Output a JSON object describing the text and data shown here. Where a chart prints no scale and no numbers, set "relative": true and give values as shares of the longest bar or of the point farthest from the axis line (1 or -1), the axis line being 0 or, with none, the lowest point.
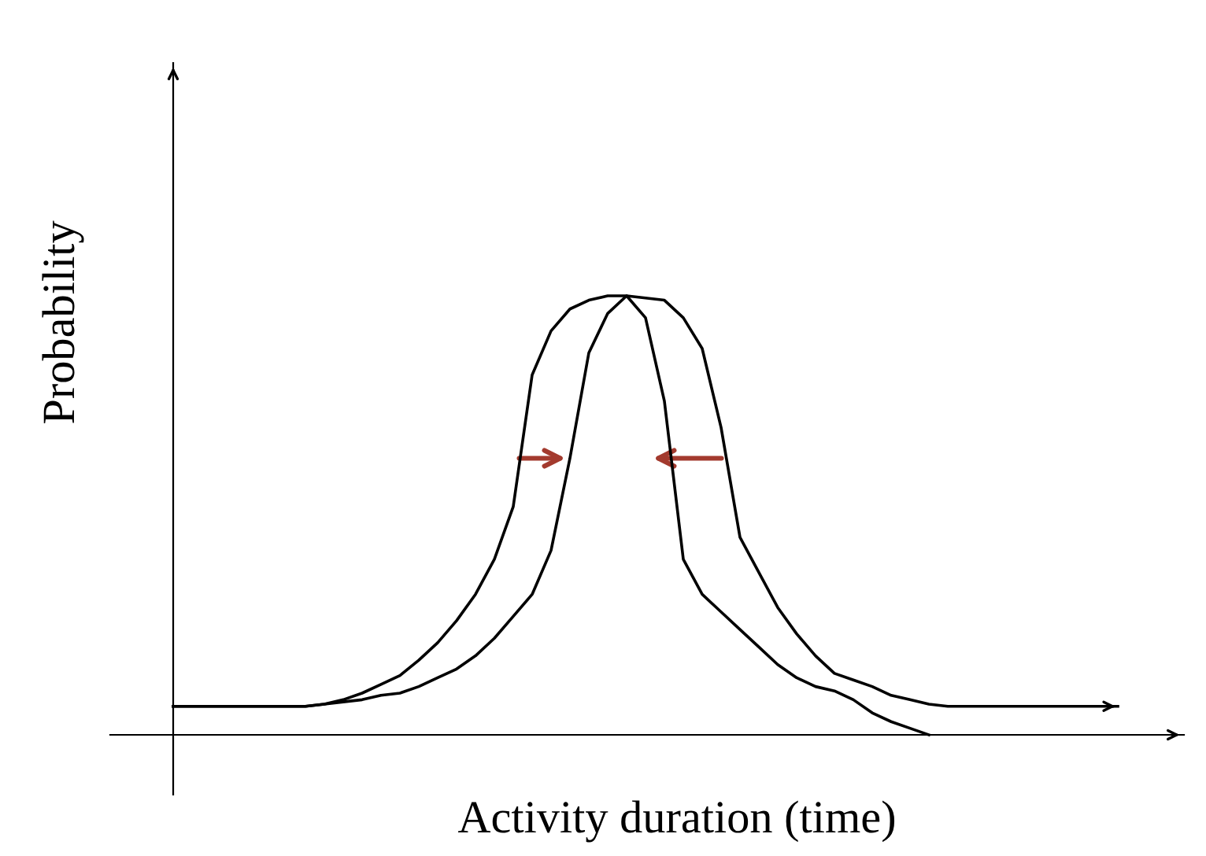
{
  "chart_data": {
    "type": "line",
    "relative": true,
    "xlabel": "Activity duration (time)",
    "ylabel": "Probability",
    "tick_labels": false,
    "legend": false,
    "marker": "none",
    "line_style": "solid",
    "categories": [
      null,
      null,
      null,
      null,
      null,
      null,
      null,
      null,
      null,
      null,
      null,
      null,
      null,
      null,
      null,
      null,
      null,
      null,
      null,
      null,
      null,
      null,
      null,
      null,
      null,
      null,
      null,
      null,
      null,
      null,
      null,
      null,
      null,
      null,
      null,
      null,
      null,
      null,
      null,
      null,
      null,
      null,
      null,
      null,
      null,
      null,
      null,
      null,
      null,
      null,
      null
    ],
    "series": [
      {
        "color": "#000000",
        "values": [
          0.065,
          0.065,
          0.065,
          0.065,
          0.065,
          0.065,
          0.065,
          0.065,
          0.07,
          0.08,
          0.095,
          0.115,
          0.135,
          0.17,
          0.21,
          0.26,
          0.32,
          0.4,
          0.52,
          0.82,
          0.92,
          0.97,
          0.99,
          1.0,
          1.0,
          0.995,
          0.99,
          0.95,
          0.88,
          0.7,
          0.45,
          0.37,
          0.29,
          0.23,
          0.18,
          0.14,
          0.125,
          0.11,
          0.09,
          0.08,
          0.07,
          0.065,
          0.065,
          0.065,
          0.065,
          0.065,
          0.065,
          0.065,
          0.065,
          0.065,
          0.065
        ]
      },
      {
        "color": "#000000",
        "values": [
          0.065,
          0.065,
          0.065,
          0.065,
          0.065,
          0.065,
          0.065,
          0.065,
          0.07,
          0.075,
          0.08,
          0.09,
          0.095,
          0.11,
          0.13,
          0.15,
          0.18,
          0.22,
          0.27,
          0.32,
          0.42,
          0.63,
          0.87,
          0.96,
          1.0,
          0.95,
          0.76,
          0.4,
          0.32,
          0.28,
          0.24,
          0.2,
          0.16,
          0.13,
          0.11,
          0.1,
          0.08,
          0.05,
          0.03,
          0.015,
          0,
          null,
          null,
          null,
          null,
          null,
          null,
          null,
          null,
          null,
          null
        ]
      }
    ]
  }
}
